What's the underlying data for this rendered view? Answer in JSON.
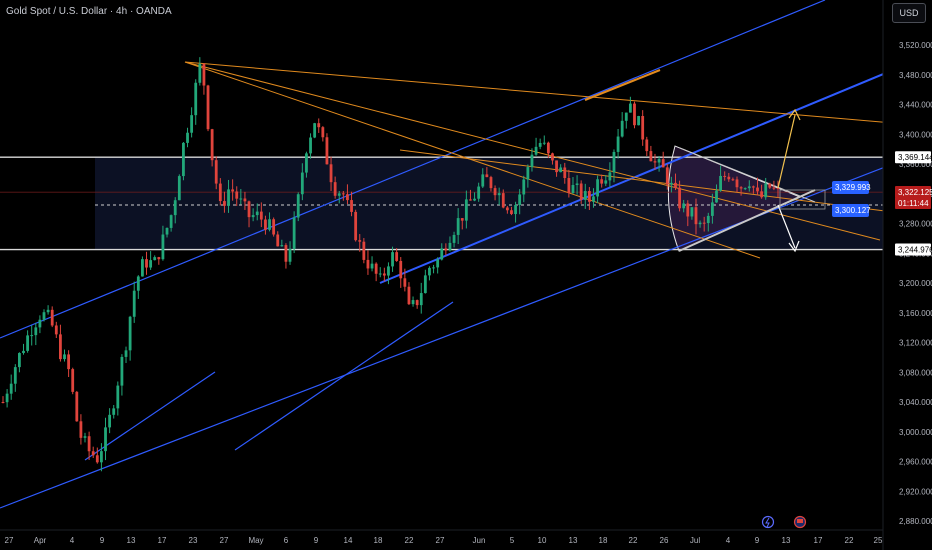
{
  "header": {
    "title": "Gold Spot / U.S. Dollar · 4h · OANDA",
    "currency": "USD"
  },
  "chart_data": {
    "type": "candlestick",
    "ylim": [
      2875,
      3570
    ],
    "y_ticks": [
      "3,520.000",
      "3,480.000",
      "3,440.000",
      "3,400.000",
      "3,360.000",
      "3,320.000",
      "3,280.000",
      "3,240.000",
      "3,200.000",
      "3,160.000",
      "3,120.000",
      "3,080.000",
      "3,040.000",
      "3,000.000",
      "2,960.000",
      "2,920.000",
      "2,880.000"
    ],
    "x_ticks": [
      "27",
      "Apr",
      "4",
      "9",
      "13",
      "17",
      "23",
      "27",
      "May",
      "6",
      "9",
      "14",
      "18",
      "22",
      "27",
      "Jun",
      "5",
      "10",
      "13",
      "18",
      "22",
      "26",
      "Jul",
      "4",
      "9",
      "13",
      "17",
      "22",
      "25"
    ],
    "price_labels": {
      "resistance": "3,369.144",
      "current": "3,322.125",
      "countdown": "01:11:44",
      "target_up": "3,329.993",
      "target_down": "3,300.127",
      "support": "3,244.976"
    },
    "horizontal_levels": [
      3369.144,
      3244.976
    ],
    "current_price": 3322.125,
    "dotted_level": 3302,
    "candles_anchor_closes": [
      3040,
      3080,
      3110,
      3140,
      3160,
      3150,
      3110,
      3080,
      3000,
      2975,
      2965,
      3000,
      3060,
      3120,
      3200,
      3230,
      3225,
      3260,
      3300,
      3380,
      3440,
      3500,
      3380,
      3300,
      3330,
      3310,
      3290,
      3290,
      3280,
      3250,
      3230,
      3290,
      3380,
      3420,
      3380,
      3330,
      3320,
      3280,
      3240,
      3220,
      3200,
      3240,
      3220,
      3160,
      3180,
      3220,
      3230,
      3260,
      3280,
      3300,
      3320,
      3340,
      3330,
      3310,
      3300,
      3330,
      3380,
      3390,
      3360,
      3350,
      3330,
      3320,
      3310,
      3340,
      3350,
      3400,
      3440,
      3420,
      3390,
      3360,
      3350,
      3320,
      3300,
      3290,
      3270,
      3300,
      3340,
      3350,
      3330,
      3340,
      3310,
      3330,
      3320
    ]
  }
}
